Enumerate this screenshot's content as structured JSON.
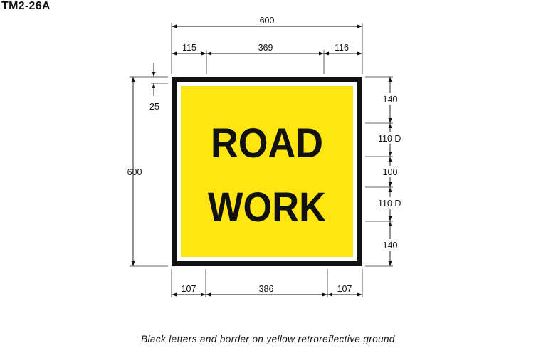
{
  "sign_code": "TM2-26A",
  "sign": {
    "line1": "ROAD",
    "line2": "WORK",
    "ground_color": "#FFE512",
    "legend_color": "#111111"
  },
  "dimensions": {
    "overall_width": "600",
    "overall_height": "600",
    "top_left_offset": "115",
    "top_middle": "369",
    "top_right_offset": "116",
    "border_width": "25",
    "bottom_left": "107",
    "bottom_middle": "386",
    "bottom_right": "107",
    "right_top_margin": "140",
    "right_letter_height_1": "110 D",
    "right_line_gap": "100",
    "right_letter_height_2": "110 D",
    "right_bottom_margin": "140"
  },
  "caption": "Black letters and border on yellow retroreflective ground"
}
